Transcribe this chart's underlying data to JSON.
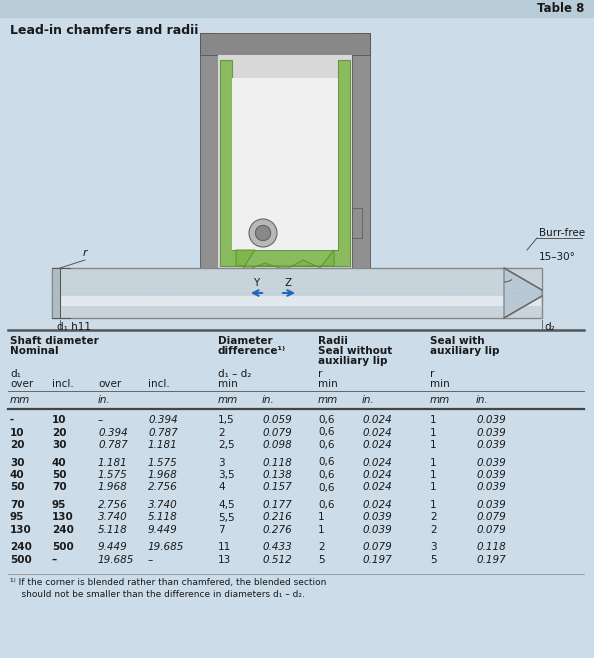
{
  "title": "Lead-in chamfers and radii",
  "table_label": "Table 8",
  "bg_color": "#ccdce8",
  "rows": [
    [
      "-",
      "10",
      "–",
      "0.394",
      "1,5",
      "0.059",
      "0,6",
      "0.024",
      "1",
      "0.039"
    ],
    [
      "10",
      "20",
      "0.394",
      "0.787",
      "2",
      "0.079",
      "0,6",
      "0.024",
      "1",
      "0.039"
    ],
    [
      "20",
      "30",
      "0.787",
      "1.181",
      "2,5",
      "0.098",
      "0,6",
      "0.024",
      "1",
      "0.039"
    ],
    [
      "",
      "",
      "",
      "",
      "",
      "",
      "",
      "",
      "",
      ""
    ],
    [
      "30",
      "40",
      "1.181",
      "1.575",
      "3",
      "0.118",
      "0,6",
      "0.024",
      "1",
      "0.039"
    ],
    [
      "40",
      "50",
      "1.575",
      "1.968",
      "3,5",
      "0.138",
      "0,6",
      "0.024",
      "1",
      "0.039"
    ],
    [
      "50",
      "70",
      "1.968",
      "2.756",
      "4",
      "0.157",
      "0,6",
      "0.024",
      "1",
      "0.039"
    ],
    [
      "",
      "",
      "",
      "",
      "",
      "",
      "",
      "",
      "",
      ""
    ],
    [
      "70",
      "95",
      "2.756",
      "3.740",
      "4,5",
      "0.177",
      "0,6",
      "0.024",
      "1",
      "0.039"
    ],
    [
      "95",
      "130",
      "3.740",
      "5.118",
      "5,5",
      "0.216",
      "1",
      "0.039",
      "2",
      "0.079"
    ],
    [
      "130",
      "240",
      "5.118",
      "9.449",
      "7",
      "0.276",
      "1",
      "0.039",
      "2",
      "0.079"
    ],
    [
      "",
      "",
      "",
      "",
      "",
      "",
      "",
      "",
      "",
      ""
    ],
    [
      "240",
      "500",
      "9.449",
      "19.685",
      "11",
      "0.433",
      "2",
      "0.079",
      "3",
      "0.118"
    ],
    [
      "500",
      "–",
      "19.685",
      "–",
      "13",
      "0.512",
      "5",
      "0.197",
      "5",
      "0.197"
    ]
  ],
  "footnote": "¹⁾ If the corner is blended rather than chamfered, the blended section\n    should not be smaller than the difference in diameters d₁ – d₂.",
  "text_color": "#1a1a1a",
  "line_color": "#444444",
  "seal_green": "#7db84a",
  "seal_green_dark": "#5a9030",
  "seal_green_light": "#a8d070",
  "shaft_color": "#c8d4dc",
  "shaft_highlight": "#e8eff4",
  "housing_outer": "#909090",
  "housing_mid": "#b8b8b8",
  "housing_inner": "#d8d8d8",
  "arrow_color": "#2266bb"
}
